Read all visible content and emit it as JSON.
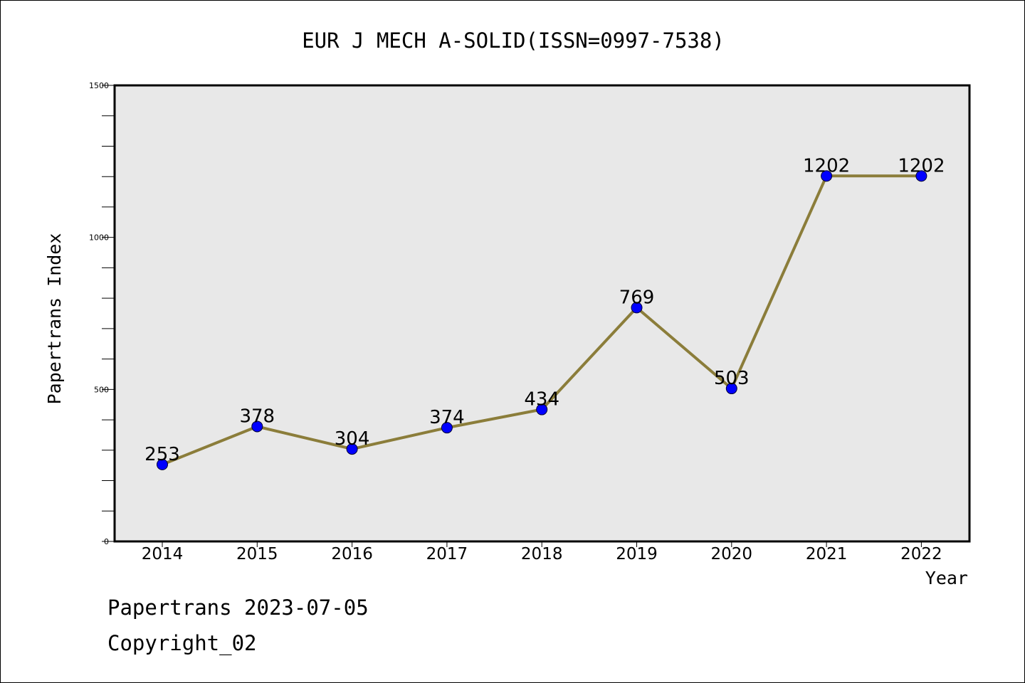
{
  "footer": {
    "line1": "Papertrans 2023-07-05",
    "line2": "Copyright_02"
  },
  "colors": {
    "plot_background": "#e8e8e8",
    "line": "#8b7d3a",
    "marker": "#0000ff",
    "marker_edge": "#000033"
  },
  "chart_data": {
    "type": "line",
    "title": "EUR J MECH A-SOLID(ISSN=0997-7538)",
    "xlabel": "Year",
    "ylabel": "Papertrans Index",
    "x": [
      2014,
      2015,
      2016,
      2017,
      2018,
      2019,
      2020,
      2021,
      2022
    ],
    "series": [
      {
        "values": [
          253,
          378,
          304,
          374,
          434,
          769,
          503,
          1202,
          1202
        ]
      }
    ],
    "data_labels": [
      "253",
      "378",
      "304",
      "374",
      "434",
      "769",
      "503",
      "1202",
      "1202"
    ],
    "ylim": [
      0,
      1500
    ],
    "y_major_ticks": [
      0,
      500,
      1000,
      1500
    ],
    "y_minor_step": 100,
    "grid": false,
    "legend": "none"
  }
}
